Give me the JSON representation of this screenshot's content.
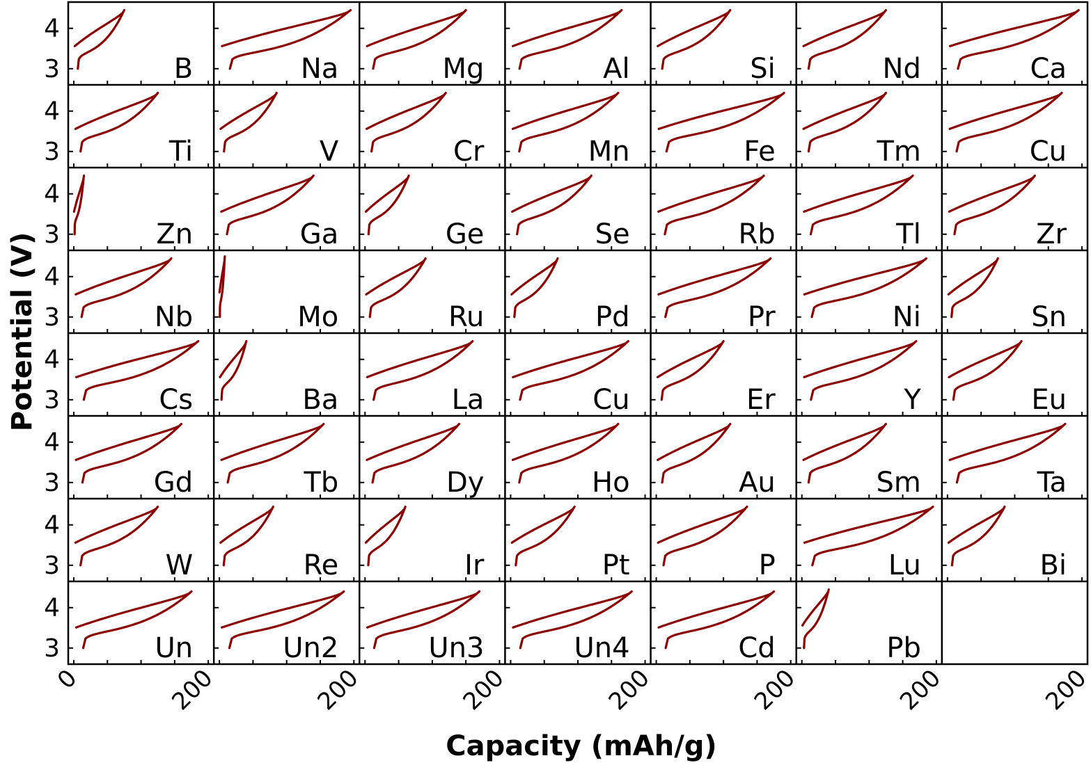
{
  "chart_data": {
    "type": "line",
    "xlabel": "Capacity (mAh/g)",
    "ylabel": "Potential (V)",
    "x_ticks": [
      "0",
      "200",
      "200",
      "200",
      "200",
      "200",
      "200",
      "200"
    ],
    "y_ticks": [
      "4",
      "3"
    ],
    "xlim": [
      0,
      200
    ],
    "ylim": [
      2.6,
      4.65
    ],
    "line_color": "#8b0000",
    "grid": false,
    "panels": [
      {
        "label": "B",
        "capacity": 75,
        "v_top": 4.45
      },
      {
        "label": "Na",
        "capacity": 195,
        "v_top": 4.45
      },
      {
        "label": "Mg",
        "capacity": 150,
        "v_top": 4.45
      },
      {
        "label": "Al",
        "capacity": 165,
        "v_top": 4.45
      },
      {
        "label": "Si",
        "capacity": 110,
        "v_top": 4.45
      },
      {
        "label": "Nd",
        "capacity": 125,
        "v_top": 4.45
      },
      {
        "label": "Ca",
        "capacity": 195,
        "v_top": 4.45
      },
      {
        "label": "Ti",
        "capacity": 125,
        "v_top": 4.45
      },
      {
        "label": "V",
        "capacity": 85,
        "v_top": 4.45
      },
      {
        "label": "Cr",
        "capacity": 120,
        "v_top": 4.45
      },
      {
        "label": "Mn",
        "capacity": 160,
        "v_top": 4.45
      },
      {
        "label": "Fe",
        "capacity": 190,
        "v_top": 4.45
      },
      {
        "label": "Tm",
        "capacity": 125,
        "v_top": 4.45
      },
      {
        "label": "Cu",
        "capacity": 170,
        "v_top": 4.45
      },
      {
        "label": "Zn",
        "capacity": 15,
        "v_top": 4.45
      },
      {
        "label": "Ga",
        "capacity": 140,
        "v_top": 4.45
      },
      {
        "label": "Ge",
        "capacity": 65,
        "v_top": 4.45
      },
      {
        "label": "Se",
        "capacity": 120,
        "v_top": 4.45
      },
      {
        "label": "Rb",
        "capacity": 160,
        "v_top": 4.45
      },
      {
        "label": "Tl",
        "capacity": 165,
        "v_top": 4.45
      },
      {
        "label": "Zr",
        "capacity": 130,
        "v_top": 4.45
      },
      {
        "label": "Nb",
        "capacity": 145,
        "v_top": 4.45
      },
      {
        "label": "Mo",
        "capacity": 8,
        "v_top": 4.5
      },
      {
        "label": "Ru",
        "capacity": 90,
        "v_top": 4.45
      },
      {
        "label": "Pd",
        "capacity": 70,
        "v_top": 4.45
      },
      {
        "label": "Pr",
        "capacity": 170,
        "v_top": 4.45
      },
      {
        "label": "Ni",
        "capacity": 185,
        "v_top": 4.45
      },
      {
        "label": "Sn",
        "capacity": 75,
        "v_top": 4.45
      },
      {
        "label": "Cs",
        "capacity": 185,
        "v_top": 4.45
      },
      {
        "label": "Ba",
        "capacity": 40,
        "v_top": 4.45
      },
      {
        "label": "La",
        "capacity": 160,
        "v_top": 4.45
      },
      {
        "label": "Cu",
        "capacity": 175,
        "v_top": 4.45
      },
      {
        "label": "Er",
        "capacity": 100,
        "v_top": 4.45
      },
      {
        "label": "Y",
        "capacity": 170,
        "v_top": 4.45
      },
      {
        "label": "Eu",
        "capacity": 110,
        "v_top": 4.45
      },
      {
        "label": "Gd",
        "capacity": 160,
        "v_top": 4.45
      },
      {
        "label": "Tb",
        "capacity": 155,
        "v_top": 4.45
      },
      {
        "label": "Dy",
        "capacity": 140,
        "v_top": 4.45
      },
      {
        "label": "Ho",
        "capacity": 160,
        "v_top": 4.45
      },
      {
        "label": "Au",
        "capacity": 110,
        "v_top": 4.45
      },
      {
        "label": "Sm",
        "capacity": 125,
        "v_top": 4.45
      },
      {
        "label": "Ta",
        "capacity": 175,
        "v_top": 4.45
      },
      {
        "label": "W",
        "capacity": 125,
        "v_top": 4.45
      },
      {
        "label": "Re",
        "capacity": 80,
        "v_top": 4.45
      },
      {
        "label": "Ir",
        "capacity": 60,
        "v_top": 4.45
      },
      {
        "label": "Pt",
        "capacity": 95,
        "v_top": 4.45
      },
      {
        "label": "P",
        "capacity": 135,
        "v_top": 4.45
      },
      {
        "label": "Lu",
        "capacity": 195,
        "v_top": 4.45
      },
      {
        "label": "Bi",
        "capacity": 85,
        "v_top": 4.45
      },
      {
        "label": "Un",
        "capacity": 175,
        "v_top": 4.4
      },
      {
        "label": "Un2",
        "capacity": 185,
        "v_top": 4.4
      },
      {
        "label": "Un3",
        "capacity": 170,
        "v_top": 4.4
      },
      {
        "label": "Un4",
        "capacity": 180,
        "v_top": 4.4
      },
      {
        "label": "Cd",
        "capacity": 175,
        "v_top": 4.4
      },
      {
        "label": "Pb",
        "capacity": 40,
        "v_top": 4.45
      }
    ]
  }
}
